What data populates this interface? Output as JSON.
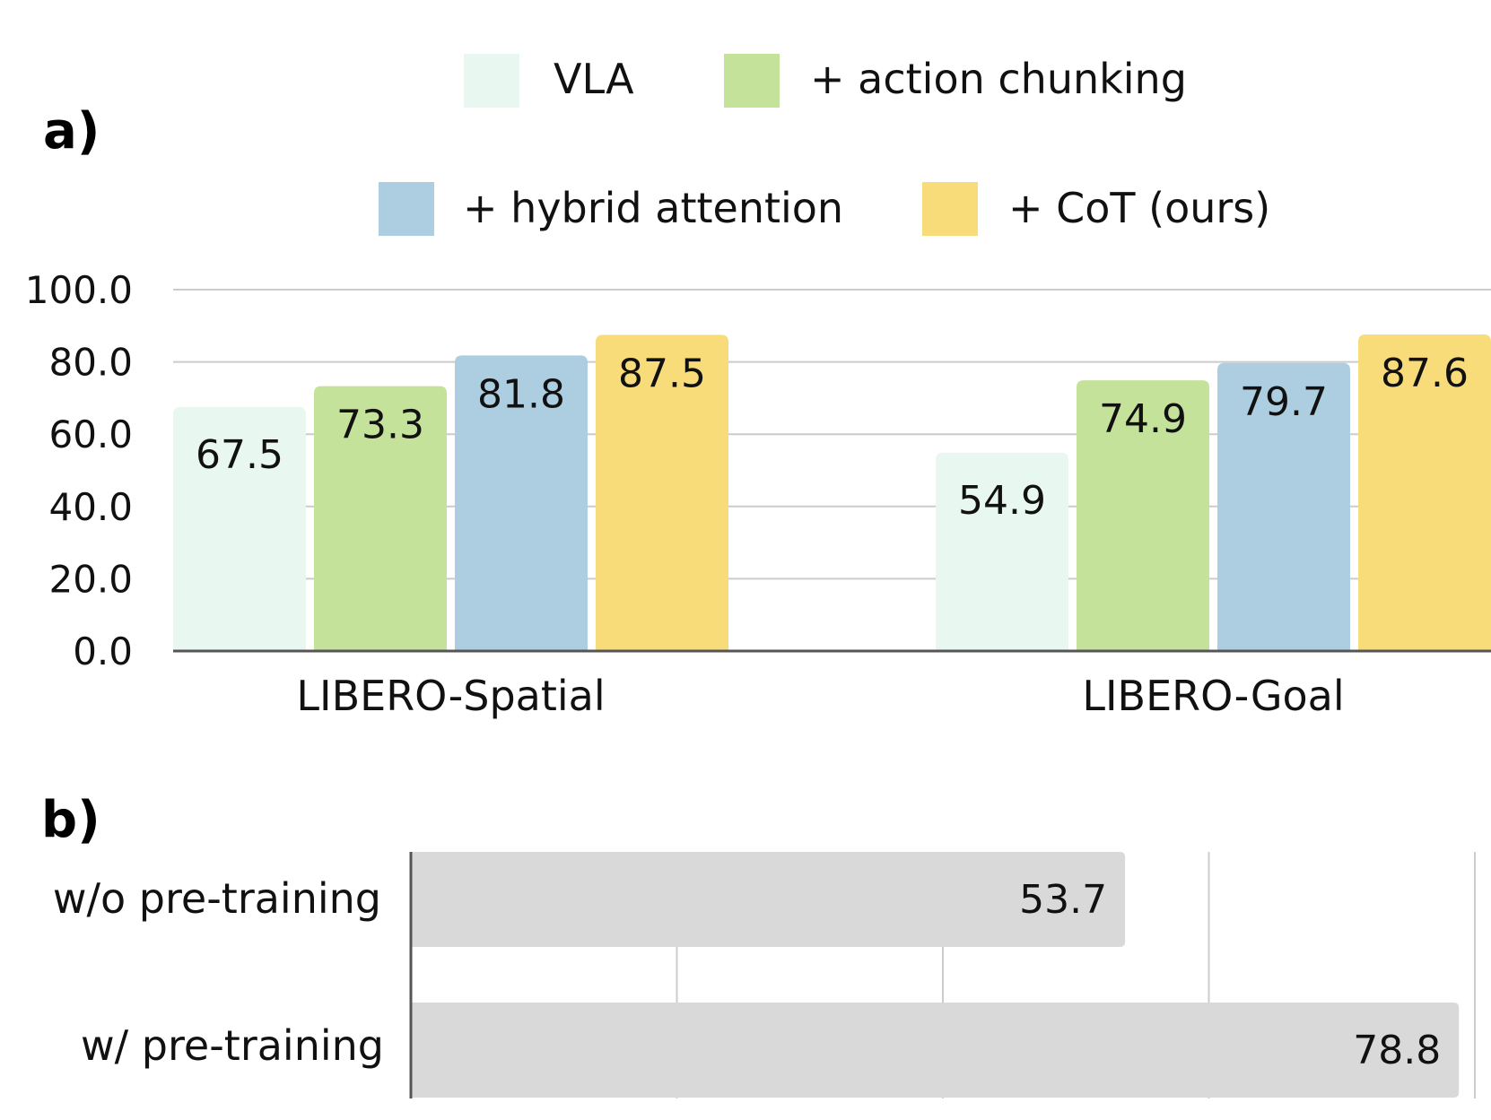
{
  "colors": {
    "VLA": "#e8f7f0",
    "+ action chunking": "#c5e29b",
    "+ hybrid attention": "#adcde0",
    "+ CoT (ours)": "#f9dc7a",
    "pretrain_bar": "#d9d9d9"
  },
  "chart_data": [
    {
      "panel_label": "a)",
      "type": "bar",
      "categories": [
        "LIBERO-Spatial",
        "LIBERO-Goal"
      ],
      "series": [
        {
          "name": "VLA",
          "values": [
            67.5,
            54.9
          ]
        },
        {
          "name": "+ action chunking",
          "values": [
            73.3,
            74.9
          ]
        },
        {
          "name": "+ hybrid attention",
          "values": [
            81.8,
            79.7
          ]
        },
        {
          "name": "+ CoT (ours)",
          "values": [
            87.5,
            87.6
          ]
        }
      ],
      "yticks": [
        "0.0",
        "20.0",
        "40.0",
        "60.0",
        "80.0",
        "100.0"
      ],
      "ylim": [
        0,
        100
      ],
      "grid": true,
      "legend": "top"
    },
    {
      "panel_label": "b)",
      "type": "bar",
      "orientation": "horizontal",
      "categories": [
        "w/o pre-training",
        "w/ pre-training"
      ],
      "values": [
        53.7,
        78.8
      ],
      "xlim": [
        0,
        80
      ],
      "grid": true
    }
  ]
}
